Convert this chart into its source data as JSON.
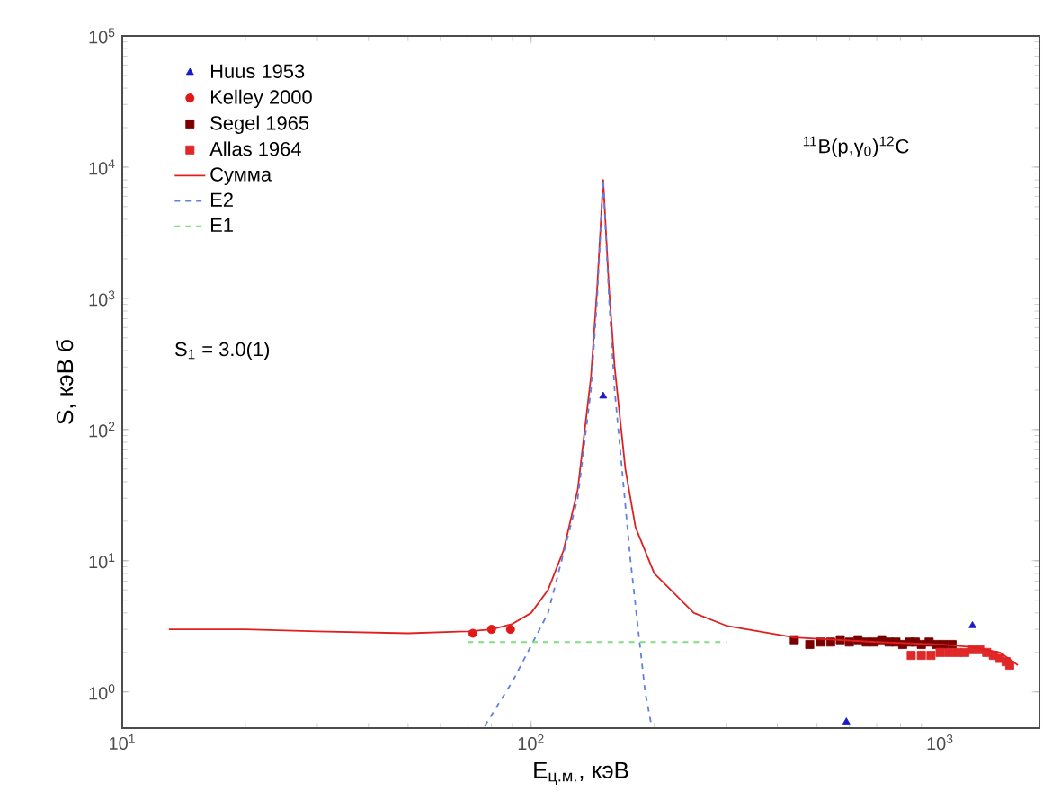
{
  "chart_data": {
    "type": "scatter",
    "xlabel": "E$_{ц.м.}$, кэВ",
    "ylabel": "S, кэВ б",
    "log": "xy",
    "xlim": [
      10,
      1750
    ],
    "ylim": [
      0.53,
      100000
    ],
    "xticks": [
      {
        "value": 10,
        "label": "10$^{1}$"
      },
      {
        "value": 100,
        "label": "10$^{2}$"
      },
      {
        "value": 1000,
        "label": "10$^{3}$"
      }
    ],
    "yticks": [
      {
        "value": 1,
        "label": "10$^{0}$"
      },
      {
        "value": 10,
        "label": "10$^{1}$"
      },
      {
        "value": 100,
        "label": "10$^{2}$"
      },
      {
        "value": 1000,
        "label": "10$^{3}$"
      },
      {
        "value": 10000,
        "label": "10$^{4}$"
      },
      {
        "value": 100000,
        "label": "10$^{5}$"
      }
    ],
    "legend": "top left",
    "grid": false,
    "annotations": [
      "$^{11}$B(p,γ$_{0}$)$^{12}$C",
      "S$_{1}$ = 3.0(1)"
    ],
    "series": [
      {
        "name": "Huus 1953",
        "marker": "triangle",
        "color": "#1a1ac8",
        "x": [
          150,
          590,
          1200
        ],
        "values": [
          180,
          0.59,
          3.2
        ]
      },
      {
        "name": "Kelley 2000",
        "marker": "circle",
        "color": "#e01818",
        "x": [
          72,
          80,
          89
        ],
        "values": [
          2.8,
          3.0,
          3.0
        ]
      },
      {
        "name": "Segel 1965",
        "marker": "square",
        "color": "#7a0000",
        "x": [
          440,
          480,
          510,
          540,
          570,
          600,
          630,
          660,
          690,
          720,
          750,
          780,
          810,
          840,
          870,
          900,
          940,
          980,
          1020,
          1070
        ],
        "values": [
          2.5,
          2.3,
          2.4,
          2.4,
          2.5,
          2.4,
          2.5,
          2.4,
          2.4,
          2.5,
          2.4,
          2.4,
          2.3,
          2.4,
          2.4,
          2.3,
          2.4,
          2.3,
          2.3,
          2.3
        ]
      },
      {
        "name": "Allas 1964",
        "marker": "square",
        "color": "#e02828",
        "x": [
          850,
          900,
          950,
          1000,
          1050,
          1100,
          1150,
          1200,
          1250,
          1300,
          1350,
          1400,
          1450,
          1480
        ],
        "values": [
          1.9,
          1.9,
          1.9,
          2.0,
          2.0,
          2.0,
          2.0,
          2.1,
          2.1,
          2.0,
          1.9,
          1.8,
          1.7,
          1.6
        ]
      },
      {
        "name": "Сумма",
        "type": "line",
        "line_style": "solid",
        "color": "#e02020",
        "x": [
          13,
          20,
          30,
          50,
          70,
          80,
          90,
          100,
          110,
          120,
          130,
          140,
          145,
          150,
          155,
          160,
          170,
          180,
          200,
          250,
          300,
          440,
          700,
          1000,
          1200,
          1400,
          1550
        ],
        "values": [
          3.0,
          3.0,
          2.9,
          2.8,
          2.9,
          3.0,
          3.3,
          4.0,
          6.0,
          12,
          35,
          250,
          1200,
          8000,
          1200,
          300,
          50,
          18,
          8,
          4,
          3.2,
          2.6,
          2.4,
          2.3,
          2.2,
          2.0,
          1.6
        ]
      },
      {
        "name": "E2",
        "type": "line",
        "line_style": "dashed",
        "color": "#6080e0",
        "x": [
          77,
          90,
          110,
          130,
          140,
          145,
          150,
          155,
          160,
          175,
          190,
          197
        ],
        "values": [
          0.55,
          1.2,
          4,
          30,
          200,
          1000,
          8000,
          1000,
          200,
          10,
          1,
          0.55
        ]
      },
      {
        "name": "E1",
        "type": "line",
        "line_style": "dashed",
        "color": "#80e080",
        "x": [
          70,
          300
        ],
        "values": [
          2.4,
          2.4
        ]
      }
    ]
  }
}
